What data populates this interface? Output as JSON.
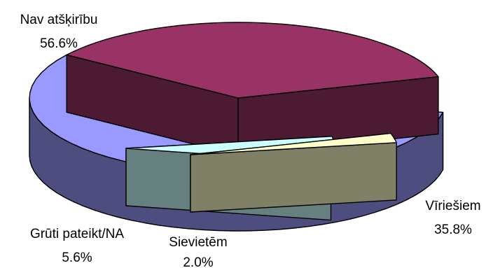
{
  "chart_data": {
    "type": "pie",
    "style": "3d-exploded",
    "slices": [
      {
        "label": "Nav atšķirību",
        "value": 56.6,
        "value_label": "56.6%",
        "color": "#9999ff",
        "side_color": "#4d4d80"
      },
      {
        "label": "Vīriešiem",
        "value": 35.8,
        "value_label": "35.8%",
        "color": "#993366",
        "side_color": "#4d1a33"
      },
      {
        "label": "Sievietēm",
        "value": 2.0,
        "value_label": "2.0%",
        "color": "#ffffcc",
        "side_color": "#808066"
      },
      {
        "label": "Grūti pateikt/NA",
        "value": 5.6,
        "value_label": "5.6%",
        "color": "#ccffff",
        "side_color": "#668080"
      }
    ],
    "legend": "none"
  }
}
